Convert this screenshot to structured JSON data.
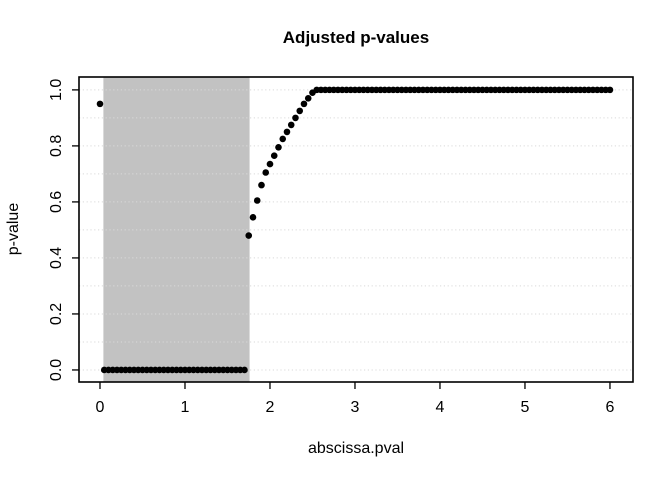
{
  "colors": {
    "background": "#ffffff",
    "axis": "#000000",
    "gridline": "#d9d9d9",
    "highlight": "#c2c2c2",
    "point": "#000000"
  },
  "chart_data": {
    "type": "scatter",
    "title": "Adjusted p-values",
    "xlabel": "abscissa.pval",
    "ylabel": "p-value",
    "xlim": [
      -0.247,
      6.271
    ],
    "ylim": [
      -0.043,
      1.046
    ],
    "x_ticks": [
      0,
      1,
      2,
      3,
      4,
      5,
      6
    ],
    "x_tick_labels": [
      "0",
      "1",
      "2",
      "3",
      "4",
      "5",
      "6"
    ],
    "y_ticks": [
      0.0,
      0.2,
      0.4,
      0.6,
      0.8,
      1.0
    ],
    "y_tick_labels": [
      "0.0",
      "0.2",
      "0.4",
      "0.6",
      "0.8",
      "1.0"
    ],
    "grid": {
      "horizontal_values": [
        0,
        0.1,
        0.2,
        0.3,
        0.4,
        0.5,
        0.6,
        0.7,
        0.8,
        0.9,
        1.0
      ],
      "vertical": false,
      "line_style": "dotted",
      "color": "#d9d9d9"
    },
    "highlight_rect": {
      "x0": 0.04,
      "x1": 1.76,
      "full_height": true,
      "color": "#c2c2c2"
    },
    "point_style": {
      "shape": "filled-circle",
      "color": "#000000",
      "radius_px": 3.3
    },
    "points": [
      [
        0,
        0.95
      ],
      [
        0.05,
        0
      ],
      [
        0.1,
        0
      ],
      [
        0.15,
        0
      ],
      [
        0.2,
        0
      ],
      [
        0.25,
        0
      ],
      [
        0.3,
        0
      ],
      [
        0.35,
        0
      ],
      [
        0.4,
        0
      ],
      [
        0.45,
        0
      ],
      [
        0.5,
        0
      ],
      [
        0.55,
        0
      ],
      [
        0.6,
        0
      ],
      [
        0.65,
        0
      ],
      [
        0.7,
        0
      ],
      [
        0.75,
        0
      ],
      [
        0.8,
        0
      ],
      [
        0.85,
        0
      ],
      [
        0.9,
        0
      ],
      [
        0.95,
        0
      ],
      [
        1.0,
        0
      ],
      [
        1.05,
        0
      ],
      [
        1.1,
        0
      ],
      [
        1.15,
        0
      ],
      [
        1.2,
        0
      ],
      [
        1.25,
        0
      ],
      [
        1.3,
        0
      ],
      [
        1.35,
        0
      ],
      [
        1.4,
        0
      ],
      [
        1.45,
        0
      ],
      [
        1.5,
        0
      ],
      [
        1.55,
        0
      ],
      [
        1.6,
        0
      ],
      [
        1.65,
        0
      ],
      [
        1.7,
        0
      ],
      [
        1.75,
        0.48
      ],
      [
        1.8,
        0.545
      ],
      [
        1.85,
        0.605
      ],
      [
        1.9,
        0.66
      ],
      [
        1.95,
        0.705
      ],
      [
        2.0,
        0.735
      ],
      [
        2.05,
        0.765
      ],
      [
        2.1,
        0.795
      ],
      [
        2.15,
        0.825
      ],
      [
        2.2,
        0.85
      ],
      [
        2.25,
        0.875
      ],
      [
        2.3,
        0.9
      ],
      [
        2.35,
        0.925
      ],
      [
        2.4,
        0.95
      ],
      [
        2.45,
        0.97
      ],
      [
        2.5,
        0.99
      ],
      [
        2.55,
        1
      ],
      [
        2.6,
        1
      ],
      [
        2.65,
        1
      ],
      [
        2.7,
        1
      ],
      [
        2.75,
        1
      ],
      [
        2.8,
        1
      ],
      [
        2.85,
        1
      ],
      [
        2.9,
        1
      ],
      [
        2.95,
        1
      ],
      [
        3.0,
        1
      ],
      [
        3.05,
        1
      ],
      [
        3.1,
        1
      ],
      [
        3.15,
        1
      ],
      [
        3.2,
        1
      ],
      [
        3.25,
        1
      ],
      [
        3.3,
        1
      ],
      [
        3.35,
        1
      ],
      [
        3.4,
        1
      ],
      [
        3.45,
        1
      ],
      [
        3.5,
        1
      ],
      [
        3.55,
        1
      ],
      [
        3.6,
        1
      ],
      [
        3.65,
        1
      ],
      [
        3.7,
        1
      ],
      [
        3.75,
        1
      ],
      [
        3.8,
        1
      ],
      [
        3.85,
        1
      ],
      [
        3.9,
        1
      ],
      [
        3.95,
        1
      ],
      [
        4.0,
        1
      ],
      [
        4.05,
        1
      ],
      [
        4.1,
        1
      ],
      [
        4.15,
        1
      ],
      [
        4.2,
        1
      ],
      [
        4.25,
        1
      ],
      [
        4.3,
        1
      ],
      [
        4.35,
        1
      ],
      [
        4.4,
        1
      ],
      [
        4.45,
        1
      ],
      [
        4.5,
        1
      ],
      [
        4.55,
        1
      ],
      [
        4.6,
        1
      ],
      [
        4.65,
        1
      ],
      [
        4.7,
        1
      ],
      [
        4.75,
        1
      ],
      [
        4.8,
        1
      ],
      [
        4.85,
        1
      ],
      [
        4.9,
        1
      ],
      [
        4.95,
        1
      ],
      [
        5.0,
        1
      ],
      [
        5.05,
        1
      ],
      [
        5.1,
        1
      ],
      [
        5.15,
        1
      ],
      [
        5.2,
        1
      ],
      [
        5.25,
        1
      ],
      [
        5.3,
        1
      ],
      [
        5.35,
        1
      ],
      [
        5.4,
        1
      ],
      [
        5.45,
        1
      ],
      [
        5.5,
        1
      ],
      [
        5.55,
        1
      ],
      [
        5.6,
        1
      ],
      [
        5.65,
        1
      ],
      [
        5.7,
        1
      ],
      [
        5.75,
        1
      ],
      [
        5.8,
        1
      ],
      [
        5.85,
        1
      ],
      [
        5.9,
        1
      ],
      [
        5.95,
        1
      ],
      [
        6.0,
        1
      ]
    ]
  }
}
